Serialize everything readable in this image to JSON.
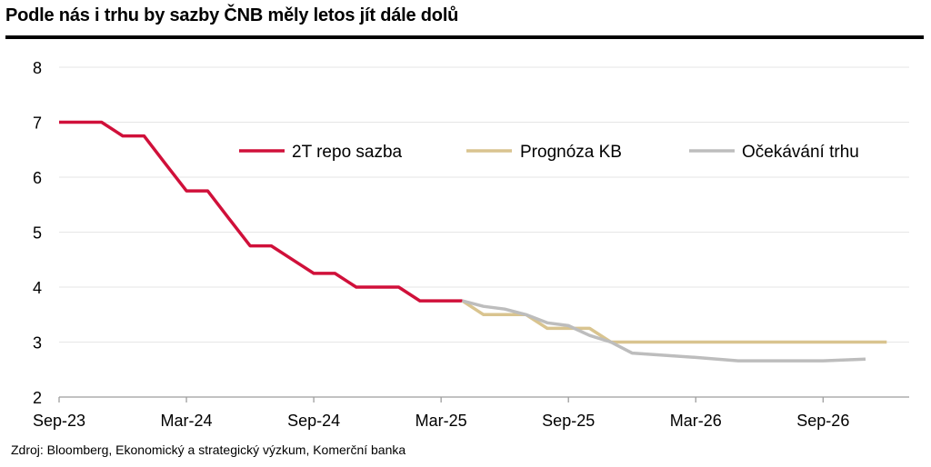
{
  "title": "Podle nás i trhu by sazby ČNB měly letos jít dále dolů",
  "source": "Zdroj: Bloomberg, Ekonomický a strategický výzkum, Komerční banka",
  "chart_data": {
    "type": "line",
    "xlabel": "",
    "ylabel": "",
    "ylim": [
      2,
      8
    ],
    "yticks": [
      2,
      3,
      4,
      5,
      6,
      7,
      8
    ],
    "xlim": [
      "2023-09",
      "2027-01"
    ],
    "xticks": [
      {
        "label": "Sep-23",
        "x": "2023-09"
      },
      {
        "label": "Mar-24",
        "x": "2024-03"
      },
      {
        "label": "Sep-24",
        "x": "2024-09"
      },
      {
        "label": "Mar-25",
        "x": "2025-03"
      },
      {
        "label": "Sep-25",
        "x": "2025-09"
      },
      {
        "label": "Mar-26",
        "x": "2026-03"
      },
      {
        "label": "Sep-26",
        "x": "2026-09"
      }
    ],
    "grid": true,
    "legend_position": "top-center",
    "series": [
      {
        "name": "2T repo sazba",
        "color": "#d0103a",
        "points": [
          [
            "2023-09",
            7.0
          ],
          [
            "2023-11",
            7.0
          ],
          [
            "2023-12",
            6.75
          ],
          [
            "2024-01",
            6.75
          ],
          [
            "2024-02",
            6.25
          ],
          [
            "2024-03",
            5.75
          ],
          [
            "2024-04",
            5.75
          ],
          [
            "2024-05",
            5.25
          ],
          [
            "2024-06",
            4.75
          ],
          [
            "2024-07",
            4.75
          ],
          [
            "2024-08",
            4.5
          ],
          [
            "2024-09",
            4.25
          ],
          [
            "2024-10",
            4.25
          ],
          [
            "2024-11",
            4.0
          ],
          [
            "2024-12",
            4.0
          ],
          [
            "2025-01",
            4.0
          ],
          [
            "2025-02",
            3.75
          ],
          [
            "2025-04",
            3.75
          ]
        ]
      },
      {
        "name": "Prognóza KB",
        "color": "#d9c48f",
        "points": [
          [
            "2025-04",
            3.75
          ],
          [
            "2025-05",
            3.5
          ],
          [
            "2025-06",
            3.5
          ],
          [
            "2025-07",
            3.5
          ],
          [
            "2025-08",
            3.25
          ],
          [
            "2025-09",
            3.25
          ],
          [
            "2025-10",
            3.25
          ],
          [
            "2025-11",
            3.0
          ],
          [
            "2026-12",
            3.0
          ]
        ]
      },
      {
        "name": "Očekávání trhu",
        "color": "#bdbdbd",
        "points": [
          [
            "2025-04",
            3.75
          ],
          [
            "2025-05",
            3.65
          ],
          [
            "2025-06",
            3.6
          ],
          [
            "2025-07",
            3.5
          ],
          [
            "2025-08",
            3.35
          ],
          [
            "2025-09",
            3.3
          ],
          [
            "2025-10",
            3.12
          ],
          [
            "2025-11",
            3.0
          ],
          [
            "2025-12",
            2.8
          ],
          [
            "2026-03",
            2.72
          ],
          [
            "2026-05",
            2.66
          ],
          [
            "2026-09",
            2.66
          ],
          [
            "2026-11",
            2.69
          ]
        ]
      }
    ]
  }
}
